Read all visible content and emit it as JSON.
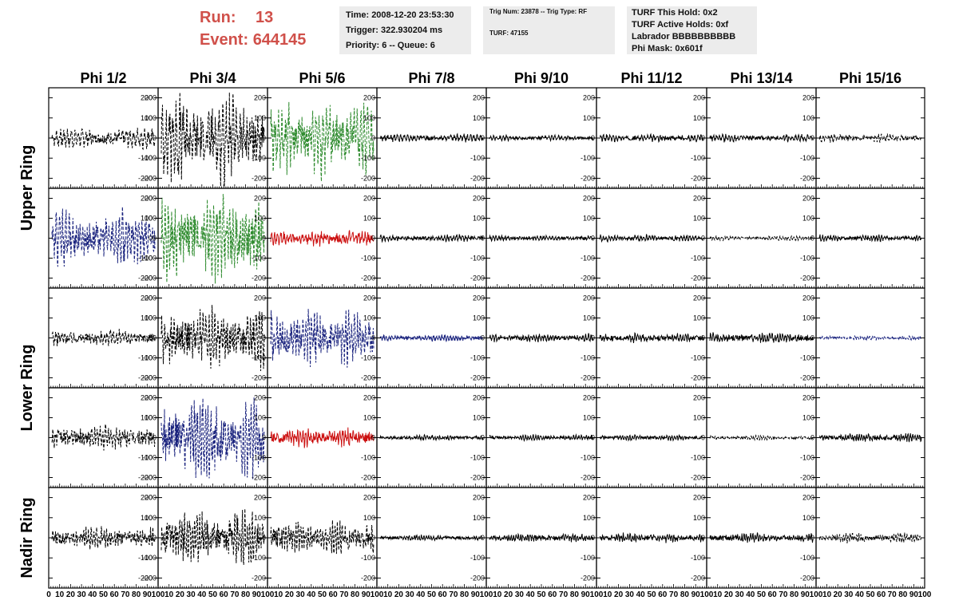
{
  "header": {
    "run_label": "Run:",
    "run_value": "13",
    "event_label": "Event:",
    "event_value": "644145",
    "time": "Time: 2008-12-20 23:53:30",
    "trigger": "Trigger: 322.930204 ms",
    "priority": "Priority: 6 -- Queue: 6",
    "trig_num": "Trig Num: 23878 -- Trig Type: RF",
    "turf": "TURF: 47155",
    "turf_this_hold": "TURF This Hold: 0x2",
    "turf_active_holds": "TURF Active Holds: 0xf",
    "labrador": "Labrador BBBBBBBBBB",
    "phi_mask": "Phi Mask: 0x601f"
  },
  "colors": {
    "black": "#000000",
    "green": "#2e8b2e",
    "blue": "#1a237e",
    "red": "#cc1111",
    "accent": "#d0504a"
  },
  "chart_data": {
    "type": "line",
    "columns": [
      "Phi 1/2",
      "Phi 3/4",
      "Phi 5/6",
      "Phi 7/8",
      "Phi 9/10",
      "Phi 11/12",
      "Phi 13/14",
      "Phi 15/16"
    ],
    "rows": [
      "Upper Ring",
      "Lower Ring",
      "Nadir Ring"
    ],
    "ylim": [
      -250,
      250
    ],
    "yticks": [
      -200,
      -100,
      0,
      100,
      200
    ],
    "xlim": [
      0,
      100
    ],
    "xticks": [
      0,
      10,
      20,
      30,
      40,
      50,
      60,
      70,
      80,
      90,
      100
    ],
    "ylabels_on": "left of panels 2-8, right of panel 1",
    "panels": [
      [
        {
          "color": "black",
          "style": "dashed",
          "amp": 55
        },
        {
          "color": "black",
          "style": "dashed",
          "amp": 230
        },
        {
          "color": "green",
          "style": "dashed",
          "amp": 200
        },
        {
          "color": "black",
          "style": "solid",
          "amp": 20
        },
        {
          "color": "black",
          "style": "solid",
          "amp": 15
        },
        {
          "color": "black",
          "style": "solid",
          "amp": 20
        },
        {
          "color": "black",
          "style": "solid",
          "amp": 20
        },
        {
          "color": "black",
          "style": "dashed",
          "amp": 22
        }
      ],
      [
        {
          "color": "blue",
          "style": "dashed",
          "amp": 150
        },
        {
          "color": "green",
          "style": "dashed",
          "amp": 220
        },
        {
          "color": "red",
          "style": "solid",
          "amp": 45
        },
        {
          "color": "black",
          "style": "solid",
          "amp": 18
        },
        {
          "color": "black",
          "style": "solid",
          "amp": 15
        },
        {
          "color": "black",
          "style": "solid",
          "amp": 18
        },
        {
          "color": "black",
          "style": "dashed",
          "amp": 12
        },
        {
          "color": "black",
          "style": "solid",
          "amp": 18
        }
      ],
      [
        {
          "color": "black",
          "style": "dashed",
          "amp": 45
        },
        {
          "color": "black",
          "style": "dashed",
          "amp": 160
        },
        {
          "color": "blue",
          "style": "dashed",
          "amp": 150
        },
        {
          "color": "blue",
          "style": "solid",
          "amp": 18
        },
        {
          "color": "black",
          "style": "solid",
          "amp": 22
        },
        {
          "color": "black",
          "style": "solid",
          "amp": 25
        },
        {
          "color": "black",
          "style": "solid",
          "amp": 28
        },
        {
          "color": "blue",
          "style": "dashed",
          "amp": 12
        }
      ],
      [
        {
          "color": "black",
          "style": "dashed",
          "amp": 70
        },
        {
          "color": "blue",
          "style": "dashed",
          "amp": 220
        },
        {
          "color": "red",
          "style": "solid",
          "amp": 50
        },
        {
          "color": "black",
          "style": "solid",
          "amp": 15
        },
        {
          "color": "black",
          "style": "solid",
          "amp": 15
        },
        {
          "color": "black",
          "style": "solid",
          "amp": 15
        },
        {
          "color": "black",
          "style": "dashed",
          "amp": 12
        },
        {
          "color": "black",
          "style": "solid",
          "amp": 22
        }
      ],
      [
        {
          "color": "black",
          "style": "dashed",
          "amp": 60
        },
        {
          "color": "black",
          "style": "dashed",
          "amp": 140
        },
        {
          "color": "black",
          "style": "dashed",
          "amp": 90
        },
        {
          "color": "black",
          "style": "solid",
          "amp": 15
        },
        {
          "color": "black",
          "style": "solid",
          "amp": 22
        },
        {
          "color": "black",
          "style": "solid",
          "amp": 25
        },
        {
          "color": "black",
          "style": "solid",
          "amp": 25
        },
        {
          "color": "black",
          "style": "dashed",
          "amp": 25
        }
      ]
    ]
  }
}
